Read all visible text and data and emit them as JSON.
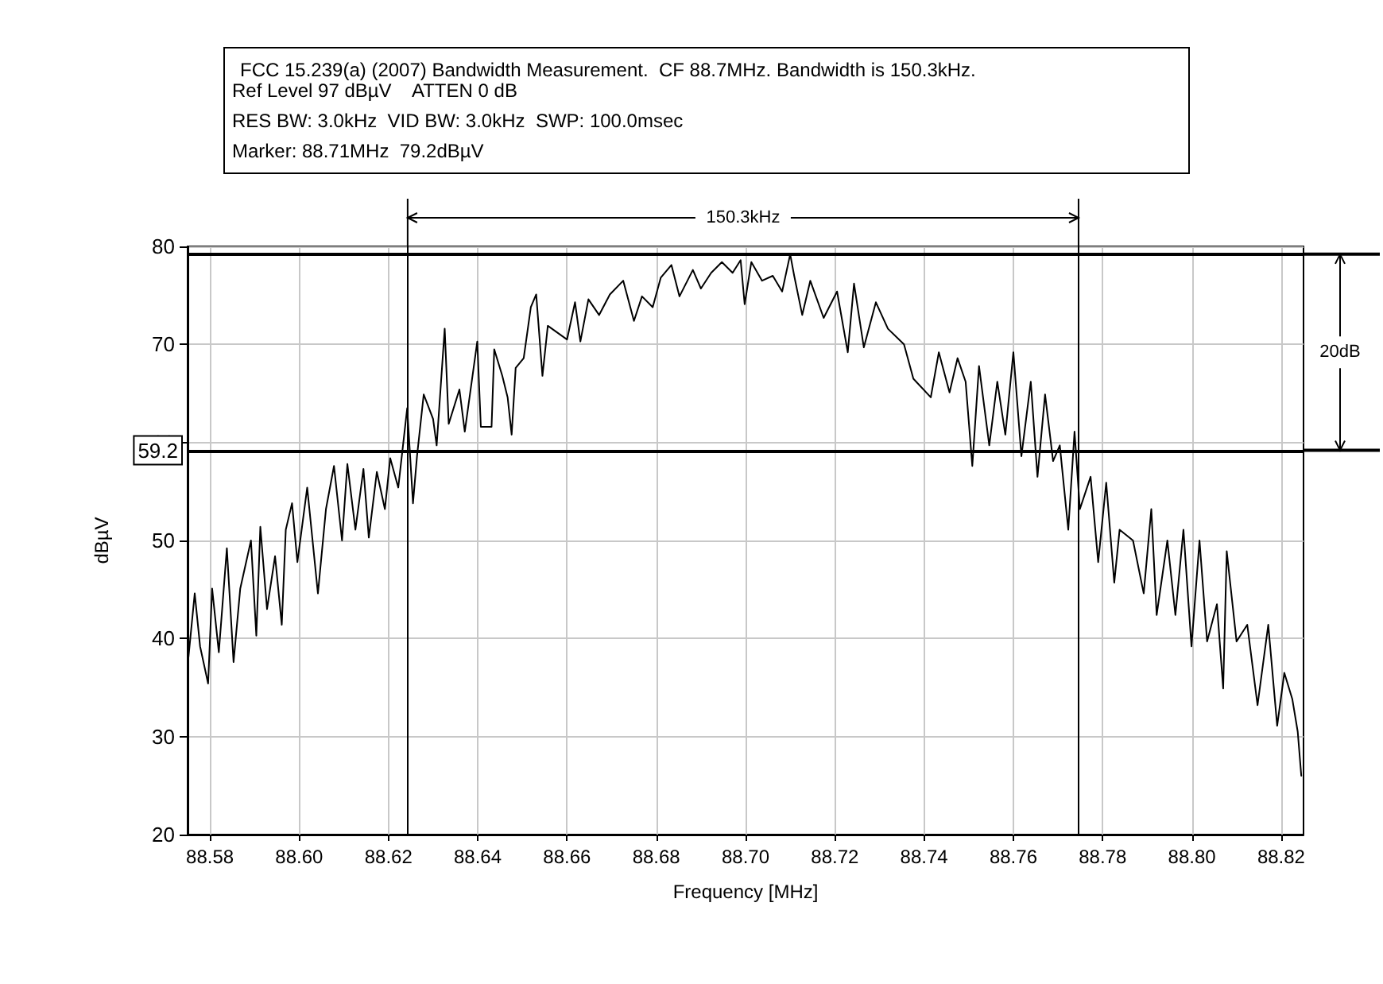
{
  "chart_data": {
    "type": "line",
    "title": "FCC 15.239(a) (2007) Bandwidth Measurement.  CF 88.7MHz. Bandwidth is 150.3kHz.",
    "xlabel": "Frequency [MHz]",
    "ylabel": "dBµV",
    "annotations": [
      "Ref Level 97 dBµV    ATTEN 0 dB",
      "RES BW: 3.0kHz  VID BW: 3.0kHz  SWP: 100.0msec",
      "Marker: 88.71MHz  79.2dBµV",
      "150.3kHz",
      "20dB"
    ],
    "x": [
      88.5752,
      88.5766,
      88.5778,
      88.5796,
      88.5805,
      88.582,
      88.5838,
      88.5853,
      88.5868,
      88.5892,
      88.5904,
      88.5913,
      88.5928,
      88.5946,
      88.5961,
      88.597,
      88.5984,
      88.5996,
      88.6018,
      88.6042,
      88.606,
      88.6078,
      88.6096,
      88.6108,
      88.6126,
      88.6144,
      88.6156,
      88.6174,
      88.6192,
      88.6204,
      88.6222,
      88.6242,
      88.6255,
      88.6264,
      88.6279,
      88.63,
      88.6308,
      88.6326,
      88.6335,
      88.6359,
      88.6371,
      88.6399,
      88.6407,
      88.6431,
      88.6437,
      88.6455,
      88.6467,
      88.6476,
      88.6485,
      88.6503,
      88.6519,
      88.6531,
      88.6545,
      88.6557,
      88.66,
      88.6618,
      88.663,
      88.6648,
      88.6672,
      88.6696,
      88.6726,
      88.675,
      88.6768,
      88.6792,
      88.681,
      88.6834,
      88.6852,
      88.6882,
      88.69,
      88.6923,
      88.6947,
      88.6971,
      88.6989,
      88.6998,
      88.7013,
      88.7037,
      88.7061,
      88.7082,
      88.71,
      88.7109,
      88.7127,
      88.7145,
      88.7175,
      88.7205,
      88.7229,
      88.7243,
      88.7265,
      88.7292,
      88.7319,
      88.7355,
      88.7376,
      88.7415,
      88.7433,
      88.7457,
      88.7475,
      88.7493,
      88.7508,
      88.7523,
      88.7546,
      88.7564,
      88.7582,
      88.76,
      88.7618,
      88.7639,
      88.7654,
      88.7671,
      88.7689,
      88.7704,
      88.7723,
      88.7737,
      88.7749,
      88.7773,
      88.779,
      88.7808,
      88.7826,
      88.7838,
      88.7868,
      88.7892,
      88.7909,
      88.7921,
      88.7945,
      88.7963,
      88.7981,
      88.7999,
      88.8017,
      88.8034,
      88.8056,
      88.807,
      88.8078,
      88.81,
      88.8124,
      88.8147,
      88.8171,
      88.8191,
      88.8207,
      88.8225,
      88.8237,
      88.8245
    ],
    "values": [
      38.1,
      44.6,
      39.2,
      35.4,
      45.1,
      38.6,
      49.2,
      37.6,
      45.1,
      50,
      40.3,
      51.4,
      43,
      48.4,
      41.4,
      51.1,
      53.8,
      47.8,
      55.4,
      44.6,
      53.2,
      57.6,
      50,
      57.8,
      51.1,
      57.3,
      50.3,
      57,
      53.2,
      58.4,
      55.4,
      63.5,
      53.8,
      58.6,
      64.9,
      62.4,
      59.7,
      71.6,
      61.9,
      65.4,
      61.1,
      70.3,
      61.6,
      61.6,
      69.5,
      66.8,
      64.6,
      60.8,
      67.6,
      68.6,
      73.8,
      75.1,
      66.8,
      71.9,
      70.5,
      74.3,
      70.3,
      74.6,
      73,
      75.1,
      76.5,
      72.4,
      74.9,
      73.8,
      76.8,
      78.1,
      74.9,
      77.6,
      75.7,
      77.3,
      78.4,
      77.3,
      78.6,
      74.1,
      78.4,
      76.5,
      77,
      75.4,
      79.2,
      77,
      73,
      76.5,
      72.7,
      75.4,
      69.2,
      76.2,
      69.7,
      74.3,
      71.6,
      70,
      66.5,
      64.6,
      69.2,
      65.1,
      68.6,
      66.2,
      57.6,
      67.8,
      59.7,
      66.2,
      60.8,
      69.2,
      58.6,
      66.2,
      56.5,
      64.9,
      58.1,
      59.7,
      51.1,
      61.1,
      53.2,
      56.5,
      47.8,
      55.9,
      45.7,
      51.1,
      50,
      44.6,
      53.2,
      42.4,
      50,
      42.4,
      51.1,
      39.2,
      50,
      39.7,
      43.5,
      34.9,
      48.9,
      39.7,
      41.4,
      33.2,
      41.4,
      31.1,
      36.5,
      33.8,
      30.5,
      26
    ],
    "color": "#000000",
    "marker": "none",
    "line_style": "solid",
    "grid": true,
    "xlim": [
      88.575,
      88.825
    ],
    "xticks": [
      88.58,
      {
        "value": 88.6,
        "label": "88.60"
      },
      88.62,
      88.64,
      88.66,
      88.68,
      {
        "value": 88.7,
        "label": "88.70"
      },
      88.72,
      88.74,
      88.76,
      88.78,
      {
        "value": 88.8,
        "label": "88.80"
      },
      88.82
    ],
    "ylim": [
      20,
      80
    ],
    "yticks": [
      20,
      30,
      40,
      50,
      60,
      70,
      80
    ],
    "ref_lines": [
      {
        "axis": "y",
        "value": 59.2,
        "label": "59.2"
      },
      {
        "axis": "y",
        "value": 79.2
      },
      {
        "axis": "x",
        "value": 88.6243
      },
      {
        "axis": "x",
        "value": 88.7746
      }
    ]
  }
}
